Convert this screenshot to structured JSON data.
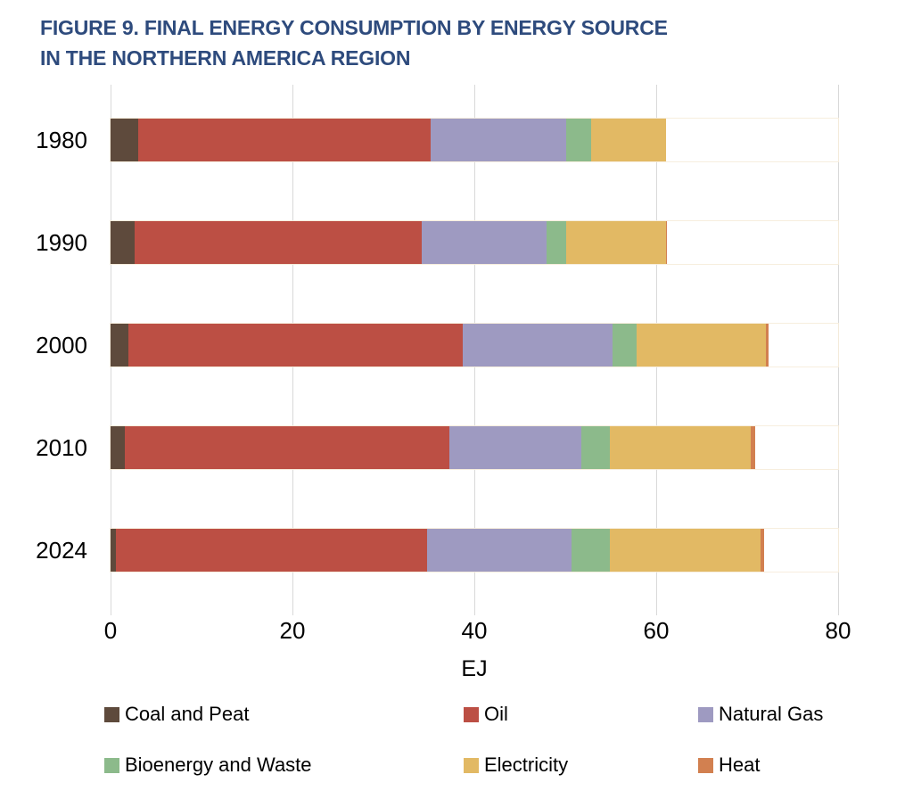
{
  "title_line1": "FIGURE 9. FINAL ENERGY CONSUMPTION BY ENERGY SOURCE",
  "title_line2": "IN THE NORTHERN AMERICA REGION",
  "chart_data": {
    "type": "bar",
    "orientation": "horizontal",
    "stacked": true,
    "title": "FIGURE 9. FINAL ENERGY CONSUMPTION BY ENERGY SOURCE IN THE NORTHERN AMERICA REGION",
    "categories": [
      "1980",
      "1990",
      "2000",
      "2010",
      "2024"
    ],
    "series": [
      {
        "name": "Coal and Peat",
        "color": "#5E4A3C",
        "values": [
          3.0,
          2.6,
          2.0,
          1.6,
          0.6
        ]
      },
      {
        "name": "Oil",
        "color": "#BC4F44",
        "values": [
          32.2,
          31.6,
          36.7,
          35.7,
          34.2
        ]
      },
      {
        "name": "Natural Gas",
        "color": "#9E9AC1",
        "values": [
          14.9,
          13.7,
          16.5,
          14.5,
          15.9
        ]
      },
      {
        "name": "Bioenergy and Waste",
        "color": "#8CBA8B",
        "values": [
          2.7,
          2.2,
          2.6,
          3.1,
          4.2
        ]
      },
      {
        "name": "Electricity",
        "color": "#E2B964",
        "values": [
          8.3,
          11.0,
          14.3,
          15.5,
          16.6
        ]
      },
      {
        "name": "Heat",
        "color": "#D28050",
        "values": [
          0.0,
          0.1,
          0.3,
          0.5,
          0.4
        ]
      }
    ],
    "xlabel": "EJ",
    "xlim": [
      0,
      80
    ],
    "xticks": [
      0,
      20,
      40,
      60,
      80
    ],
    "grid": true,
    "legend_position": "bottom",
    "legend_order": [
      "Coal and Peat",
      "Oil",
      "Natural Gas",
      "Bioenergy and Waste",
      "Electricity",
      "Heat"
    ]
  },
  "colors": {
    "title": "#2E4B7D",
    "gridline": "#D9D9D9",
    "text": "#000000",
    "background": "#FFFFFF"
  }
}
